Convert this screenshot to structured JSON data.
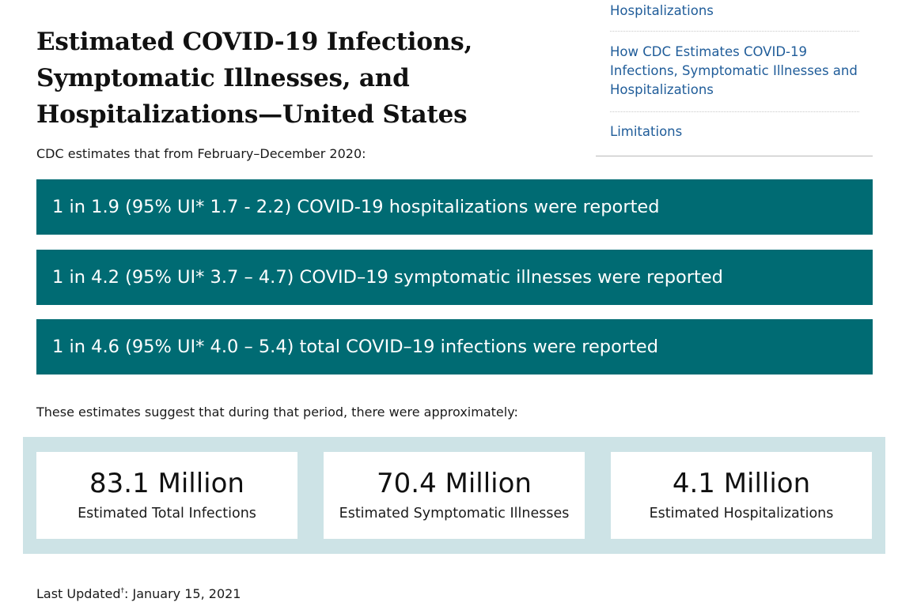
{
  "title_lines": [
    "Estimated COVID-19 Infections,",
    "Symptomatic Illnesses, and",
    "Hospitalizations—United States"
  ],
  "intro": "CDC estimates that from February–December 2020:",
  "toc": {
    "items": [
      "Hospitalizations",
      "How CDC Estimates COVID-19 Infections, Symptomatic Illnesses and Hospitalizations",
      "Limitations"
    ]
  },
  "banners": [
    "1 in 1.9 (95% UI* 1.7 - 2.2) COVID-19 hospitalizations were reported",
    "1 in 4.2 (95% UI* 3.7 – 4.7) COVID–19 symptomatic illnesses were reported",
    "1 in 4.6 (95% UI* 4.0 – 5.4) total COVID–19 infections were reported"
  ],
  "suggest": "These estimates suggest that during that period, there were approximately:",
  "stats": [
    {
      "value": "83.1 Million",
      "label": "Estimated Total Infections"
    },
    {
      "value": "70.4 Million",
      "label": "Estimated Symptomatic Illnesses"
    },
    {
      "value": "4.1 Million",
      "label": "Estimated Hospitalizations"
    }
  ],
  "last_updated": {
    "label": "Last Updated",
    "marker": "†",
    "date": ": January 15, 2021"
  },
  "colors": {
    "banner_bg": "#006b73",
    "panel_bg": "#cde3e6",
    "link": "#1f5c99"
  }
}
